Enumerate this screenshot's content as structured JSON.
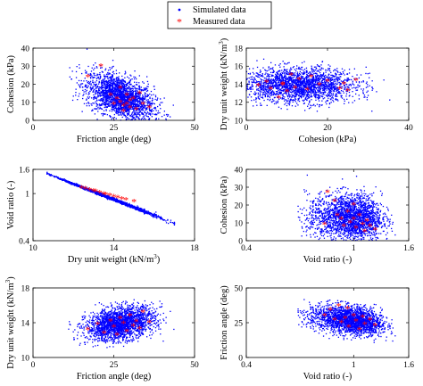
{
  "legend": {
    "simulated_label": "Simulated data",
    "measured_label": "Measured data",
    "simulated_color": "#0000ff",
    "measured_color": "#ff0000",
    "placement": "top-center"
  },
  "chart_data": [
    {
      "id": "p1",
      "type": "scatter",
      "xlabel": "Friction angle (deg)",
      "ylabel": "Cohesion (kPa)",
      "xlim": [
        0,
        50
      ],
      "ylim": [
        0,
        40
      ],
      "xticks": [
        0,
        25,
        50
      ],
      "yticks": [
        0,
        10,
        20,
        30,
        40
      ],
      "simulated": {
        "x_mean": 27,
        "x_sd": 5.2,
        "y_mean": 13,
        "y_sd": 6.5,
        "corr": -0.45,
        "x_range": [
          10,
          44
        ],
        "y_range": [
          0,
          40
        ],
        "n": 2200
      },
      "measured_points": [
        [
          17,
          24
        ],
        [
          21,
          30
        ],
        [
          24,
          14
        ],
        [
          25,
          9
        ],
        [
          26,
          12
        ],
        [
          27,
          10
        ],
        [
          28,
          8
        ],
        [
          28,
          5
        ],
        [
          29,
          14
        ],
        [
          29,
          9
        ],
        [
          30,
          11
        ],
        [
          30,
          7
        ],
        [
          31,
          12
        ],
        [
          32,
          6
        ],
        [
          33,
          15
        ],
        [
          34,
          9
        ],
        [
          36,
          7
        ],
        [
          27,
          18
        ]
      ]
    },
    {
      "id": "p2",
      "type": "scatter",
      "xlabel": "Cohesion (kPa)",
      "ylabel": "Dry unit weight (kN/m³)",
      "xlim": [
        0,
        40
      ],
      "ylim": [
        10,
        18
      ],
      "xticks": [
        0,
        20,
        40
      ],
      "yticks": [
        10,
        12,
        14,
        16,
        18
      ],
      "simulated": {
        "x_mean": 13,
        "x_sd": 7,
        "y_mean": 13.9,
        "y_sd": 0.95,
        "corr": 0.0,
        "x_range": [
          0,
          40
        ],
        "y_range": [
          11,
          17
        ],
        "n": 2200
      },
      "measured_points": [
        [
          3,
          13.8
        ],
        [
          5,
          14.2
        ],
        [
          6,
          13.5
        ],
        [
          8,
          12.5
        ],
        [
          9,
          14
        ],
        [
          10,
          13.2
        ],
        [
          11,
          15
        ],
        [
          12,
          13.6
        ],
        [
          13,
          14.5
        ],
        [
          15,
          13.4
        ],
        [
          16,
          14.8
        ],
        [
          18,
          13.9
        ],
        [
          20,
          14.3
        ],
        [
          23,
          13.5
        ],
        [
          24,
          14
        ],
        [
          25,
          13.3
        ],
        [
          27,
          14.4
        ],
        [
          9,
          13.9
        ]
      ]
    },
    {
      "id": "p3",
      "type": "scatter",
      "xlabel": "Dry unit weight (kN/m³)",
      "ylabel": "Void ratio (-)",
      "xlim": [
        10,
        18
      ],
      "ylim": [
        0.4,
        1.6
      ],
      "ylog": true,
      "xticks": [
        10,
        14,
        18
      ],
      "yticks": [
        0.4,
        1,
        1.6
      ],
      "simulated": {
        "x_mean": 13.6,
        "x_sd": 1.3,
        "curve": "void_ratio_from_dry_unit_weight",
        "x_range": [
          10.7,
          17.0
        ],
        "n": 1600
      },
      "measured_points": [
        [
          12.4,
          1.12
        ],
        [
          12.6,
          1.1
        ],
        [
          12.8,
          1.07
        ],
        [
          13,
          1.05
        ],
        [
          13.1,
          1.04
        ],
        [
          13.3,
          1.01
        ],
        [
          13.5,
          0.99
        ],
        [
          13.6,
          0.98
        ],
        [
          13.8,
          0.96
        ],
        [
          14,
          0.94
        ],
        [
          14.2,
          0.92
        ],
        [
          14.4,
          0.9
        ],
        [
          14.6,
          0.88
        ],
        [
          15,
          0.85
        ]
      ]
    },
    {
      "id": "p4",
      "type": "scatter",
      "xlabel": "Void ratio (-)",
      "ylabel": "Cohesion (kPa)",
      "xlim": [
        0.4,
        1.6
      ],
      "ylim": [
        0,
        40
      ],
      "xlog": true,
      "xticks": [
        0.4,
        1,
        1.6
      ],
      "yticks": [
        0,
        10,
        20,
        30,
        40
      ],
      "simulated": {
        "x_mean": 0.97,
        "x_sd": 0.15,
        "y_mean": 13,
        "y_sd": 6.5,
        "corr": -0.05,
        "x_range": [
          0.62,
          1.45
        ],
        "y_range": [
          0,
          40
        ],
        "n": 2200
      },
      "measured_points": [
        [
          0.8,
          27
        ],
        [
          0.85,
          22
        ],
        [
          0.87,
          14
        ],
        [
          0.9,
          12
        ],
        [
          0.92,
          8
        ],
        [
          0.95,
          16
        ],
        [
          0.97,
          10
        ],
        [
          1,
          12
        ],
        [
          1.02,
          7
        ],
        [
          1.05,
          14
        ],
        [
          1.08,
          9
        ],
        [
          1.1,
          5
        ],
        [
          1.12,
          11
        ],
        [
          1.15,
          8
        ],
        [
          1.2,
          6
        ],
        [
          0.78,
          9
        ],
        [
          1.0,
          20
        ]
      ]
    },
    {
      "id": "p5",
      "type": "scatter",
      "xlabel": "Friction angle (deg)",
      "ylabel": "Dry unit weight (kN/m³)",
      "xlim": [
        0,
        50
      ],
      "ylim": [
        10,
        18
      ],
      "xticks": [
        0,
        25,
        50
      ],
      "yticks": [
        10,
        14,
        18
      ],
      "simulated": {
        "x_mean": 27,
        "x_sd": 5.2,
        "y_mean": 13.9,
        "y_sd": 0.95,
        "corr": 0.3,
        "x_range": [
          10,
          44
        ],
        "y_range": [
          11,
          17
        ],
        "n": 2200
      },
      "measured_points": [
        [
          17,
          13.2
        ],
        [
          20,
          13.8
        ],
        [
          22,
          12.8
        ],
        [
          24,
          14.2
        ],
        [
          25,
          13.5
        ],
        [
          26,
          12.6
        ],
        [
          27,
          14.5
        ],
        [
          28,
          13.9
        ],
        [
          29,
          13
        ],
        [
          30,
          14.8
        ],
        [
          31,
          13.6
        ],
        [
          32,
          14.1
        ],
        [
          33,
          13.3
        ],
        [
          34,
          15.2
        ],
        [
          36,
          14
        ]
      ]
    },
    {
      "id": "p6",
      "type": "scatter",
      "xlabel": "Void ratio (-)",
      "ylabel": "Friction angle (deg)",
      "xlim": [
        0.4,
        1.6
      ],
      "ylim": [
        0,
        50
      ],
      "xlog": true,
      "xticks": [
        0.4,
        1,
        1.6
      ],
      "yticks": [
        0,
        25,
        50
      ],
      "simulated": {
        "x_mean": 0.97,
        "x_sd": 0.15,
        "y_mean": 27,
        "y_sd": 5.2,
        "corr": -0.3,
        "x_range": [
          0.62,
          1.45
        ],
        "y_range": [
          10,
          44
        ],
        "n": 2200
      },
      "measured_points": [
        [
          0.78,
          30
        ],
        [
          0.82,
          34
        ],
        [
          0.85,
          27
        ],
        [
          0.88,
          37
        ],
        [
          0.9,
          25
        ],
        [
          0.93,
          28
        ],
        [
          0.96,
          22
        ],
        [
          1,
          30
        ],
        [
          1.02,
          26
        ],
        [
          1.05,
          20
        ],
        [
          1.08,
          29
        ],
        [
          1.1,
          24
        ],
        [
          1.15,
          27
        ],
        [
          1.2,
          23
        ],
        [
          0.95,
          35
        ]
      ]
    }
  ]
}
